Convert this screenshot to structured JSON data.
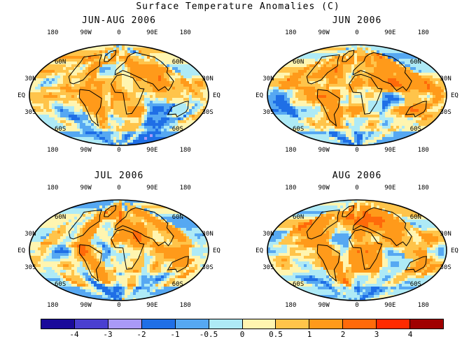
{
  "title": "Surface Temperature Anomalies (C)",
  "panels": [
    {
      "title": "JUN-AUG 2006",
      "seed": 11
    },
    {
      "title": "JUN 2006",
      "seed": 23
    },
    {
      "title": "JUL 2006",
      "seed": 37
    },
    {
      "title": "AUG 2006",
      "seed": 53
    }
  ],
  "lon_labels": [
    "180",
    "90W",
    "0",
    "90E",
    "180"
  ],
  "lat_labels": [
    "60N",
    "30N",
    "EQ",
    "30S",
    "60S"
  ],
  "colorbar": {
    "colors": [
      "#1a0a9a",
      "#4a3fd0",
      "#a999f7",
      "#1f6fe6",
      "#56a8f2",
      "#aeeaf6",
      "#fff5b0",
      "#ffc44a",
      "#ff9a1a",
      "#ff6a0a",
      "#ff2a00",
      "#a00000"
    ],
    "tick_labels": [
      "-4",
      "-3",
      "-2",
      "-1",
      "-0.5",
      "0",
      "0.5",
      "1",
      "2",
      "3",
      "4"
    ]
  }
}
